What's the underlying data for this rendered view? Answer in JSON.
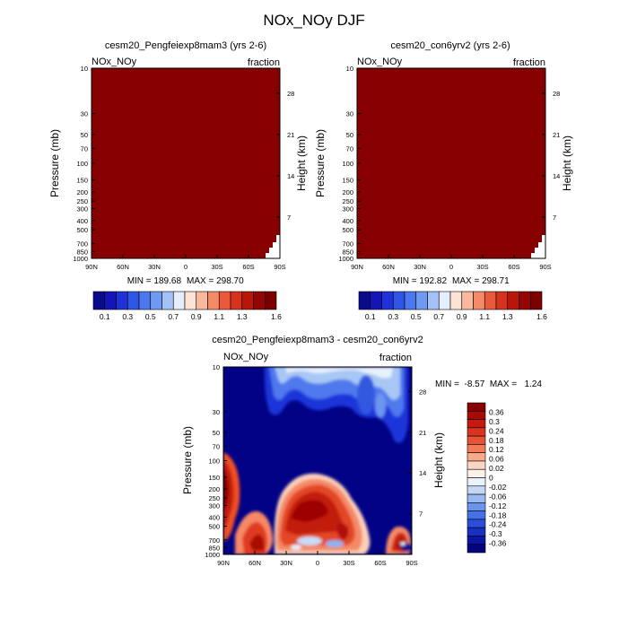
{
  "page_title": "NOx_NOy DJF",
  "chart_data": [
    {
      "type": "heatmap",
      "title": "cesm20_Pengfeiexp8mam3 (yrs 2-6)",
      "left_label": "NOx_NOy",
      "right_label": "fraction",
      "ylabel": "Pressure (mb)",
      "ylabel_right": "Height (km)",
      "x_ticks": [
        "90N",
        "60N",
        "30N",
        "0",
        "30S",
        "60S",
        "90S"
      ],
      "y_ticks": [
        "10",
        "30",
        "50",
        "70",
        "100",
        "150",
        "200",
        "250",
        "300",
        "400",
        "500",
        "700",
        "850",
        "1000"
      ],
      "y_ticks_right": [
        "28",
        "21",
        "14",
        "7"
      ],
      "min_label": "MIN = 189.68",
      "max_label": "MAX = 298.70",
      "min": 189.68,
      "max": 298.7,
      "colorbar_labels": [
        "0.1",
        "0.3",
        "0.5",
        "0.7",
        "0.9",
        "1.1",
        "1.3",
        "1.6"
      ]
    },
    {
      "type": "heatmap",
      "title": "cesm20_con6yrv2 (yrs 2-6)",
      "left_label": "NOx_NOy",
      "right_label": "fraction",
      "ylabel": "Pressure (mb)",
      "ylabel_right": "Height (km)",
      "x_ticks": [
        "90N",
        "60N",
        "30N",
        "0",
        "30S",
        "60S",
        "90S"
      ],
      "y_ticks": [
        "10",
        "30",
        "50",
        "70",
        "100",
        "150",
        "200",
        "250",
        "300",
        "400",
        "500",
        "700",
        "850",
        "1000"
      ],
      "y_ticks_right": [
        "28",
        "21",
        "14",
        "7"
      ],
      "min_label": "MIN = 192.82",
      "max_label": "MAX = 298.71",
      "min": 192.82,
      "max": 298.71,
      "colorbar_labels": [
        "0.1",
        "0.3",
        "0.5",
        "0.7",
        "0.9",
        "1.1",
        "1.3",
        "1.6"
      ]
    },
    {
      "type": "heatmap",
      "title": "cesm20_Pengfeiexp8mam3 - cesm20_con6yrv2",
      "left_label": "NOx_NOy",
      "right_label": "fraction",
      "ylabel": "Pressure (mb)",
      "ylabel_right": "Height (km)",
      "x_ticks": [
        "90N",
        "60N",
        "30N",
        "0",
        "30S",
        "60S",
        "90S"
      ],
      "y_ticks": [
        "10",
        "30",
        "50",
        "70",
        "100",
        "150",
        "200",
        "250",
        "300",
        "400",
        "500",
        "700",
        "850",
        "1000"
      ],
      "y_ticks_right": [
        "28",
        "21",
        "14",
        "7"
      ],
      "minmax_label": "MIN =  -8.57  MAX =   1.24",
      "min": -8.57,
      "max": 1.24,
      "colorbar_labels": [
        "0.36",
        "0.3",
        "0.24",
        "0.18",
        "0.12",
        "0.06",
        "0.02",
        "0",
        "-0.02",
        "-0.06",
        "-0.12",
        "-0.18",
        "-0.24",
        "-0.3",
        "-0.36"
      ]
    }
  ]
}
